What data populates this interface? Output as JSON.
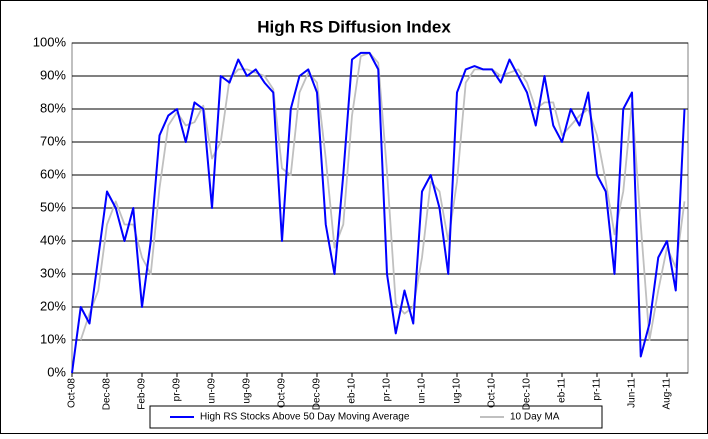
{
  "chart_data": {
    "type": "line",
    "title": "High RS Diffusion Index",
    "categories": [
      "Oct-08",
      null,
      null,
      null,
      "Dec-08",
      null,
      null,
      null,
      "Feb-09",
      null,
      null,
      null,
      "pr-09",
      null,
      null,
      null,
      "un-09",
      null,
      null,
      null,
      "ug-09",
      null,
      null,
      null,
      "Oct-09",
      null,
      null,
      null,
      "Dec-09",
      null,
      null,
      null,
      "eb-10",
      null,
      null,
      null,
      "pr-10",
      null,
      null,
      null,
      "un-10",
      null,
      null,
      null,
      "ug-10",
      null,
      null,
      null,
      "Oct-10",
      null,
      null,
      null,
      "Dec-10",
      null,
      null,
      null,
      "eb-11",
      null,
      null,
      null,
      "pr-11",
      null,
      null,
      null,
      "Jun-11",
      null,
      null,
      null,
      "Aug-11",
      null,
      null
    ],
    "series": [
      {
        "name": "High RS Stocks Above 50 Day Moving Average",
        "color": "#0000ff",
        "values": [
          0,
          20,
          15,
          35,
          55,
          50,
          40,
          50,
          20,
          40,
          72,
          78,
          80,
          70,
          82,
          80,
          50,
          90,
          88,
          95,
          90,
          92,
          88,
          85,
          40,
          80,
          90,
          92,
          85,
          45,
          30,
          60,
          95,
          97,
          97,
          92,
          30,
          12,
          25,
          15,
          55,
          60,
          50,
          30,
          85,
          92,
          93,
          92,
          92,
          88,
          95,
          90,
          85,
          75,
          90,
          75,
          70,
          80,
          75,
          85,
          60,
          55,
          30,
          80,
          85,
          5,
          15,
          35,
          40,
          25,
          80
        ]
      },
      {
        "name": "10 Day MA",
        "color": "#c0c0c0",
        "values": [
          null,
          10,
          18,
          25,
          45,
          52,
          45,
          45,
          35,
          30,
          56,
          75,
          79,
          75,
          76,
          81,
          65,
          70,
          89,
          92,
          92,
          91,
          90,
          86,
          62,
          60,
          85,
          91,
          88,
          65,
          38,
          45,
          78,
          96,
          97,
          94,
          61,
          21,
          18,
          20,
          35,
          58,
          55,
          40,
          58,
          88,
          92,
          92,
          92,
          90,
          91,
          92,
          88,
          80,
          82,
          82,
          72,
          75,
          78,
          80,
          72,
          58,
          42,
          55,
          82,
          45,
          10,
          25,
          38,
          32,
          52
        ]
      }
    ],
    "ylim": [
      0,
      100
    ],
    "yticks": [
      {
        "value": 0,
        "label": "0%"
      },
      {
        "value": 10,
        "label": "10%"
      },
      {
        "value": 20,
        "label": "20%"
      },
      {
        "value": 30,
        "label": "30%"
      },
      {
        "value": 40,
        "label": "40%"
      },
      {
        "value": 50,
        "label": "50%"
      },
      {
        "value": 60,
        "label": "60%"
      },
      {
        "value": 70,
        "label": "70%"
      },
      {
        "value": 80,
        "label": "80%"
      },
      {
        "value": 90,
        "label": "90%"
      },
      {
        "value": 100,
        "label": "100%"
      }
    ],
    "grid": true,
    "legend": "bottom"
  }
}
